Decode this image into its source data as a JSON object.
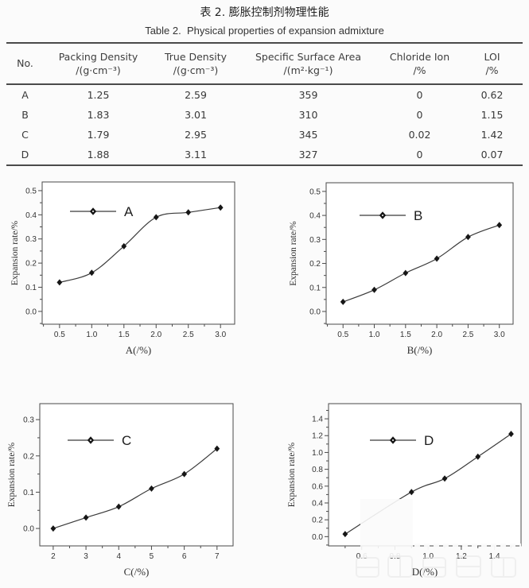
{
  "header": {
    "title_zh": "表 2. 膨胀控制剂物理性能",
    "title_en": "Table 2.  Physical properties of expansion admixture"
  },
  "table": {
    "columns": [
      {
        "name": "No.",
        "unit": ""
      },
      {
        "name": "Packing Density",
        "unit": "/(g·cm⁻³)"
      },
      {
        "name": "True Density",
        "unit": "/(g·cm⁻³)"
      },
      {
        "name": "Specific Surface Area",
        "unit": "/(m²·kg⁻¹)"
      },
      {
        "name": "Chloride Ion",
        "unit": "/%"
      },
      {
        "name": "LOI",
        "unit": "/%"
      }
    ],
    "rows": [
      [
        "A",
        "1.25",
        "2.59",
        "359",
        "0",
        "0.62"
      ],
      [
        "B",
        "1.83",
        "3.01",
        "310",
        "0",
        "1.15"
      ],
      [
        "C",
        "1.79",
        "2.95",
        "345",
        "0.02",
        "1.42"
      ],
      [
        "D",
        "1.88",
        "3.11",
        "327",
        "0",
        "0.07"
      ]
    ]
  },
  "chart_data": [
    {
      "type": "line",
      "series_label": "A",
      "marker": "diamond",
      "x": [
        0.5,
        1.0,
        1.5,
        2.0,
        2.5,
        3.0
      ],
      "y": [
        0.12,
        0.16,
        0.27,
        0.39,
        0.41,
        0.43
      ],
      "xlabel": "A(/%)",
      "ylabel": "Expansion rate/%",
      "xlim": [
        0.23,
        3.22
      ],
      "ylim": [
        -0.053,
        0.536
      ],
      "xticks": [
        0.5,
        1.0,
        1.5,
        2.0,
        2.5,
        3.0
      ],
      "yticks": [
        0.0,
        0.1,
        0.2,
        0.3,
        0.4,
        0.5
      ],
      "x_decimals": 1,
      "y_decimals": 1,
      "grid": false,
      "legend_position": "upper-left"
    },
    {
      "type": "line",
      "series_label": "B",
      "marker": "diamond",
      "x": [
        0.5,
        1.0,
        1.5,
        2.0,
        2.5,
        3.0
      ],
      "y": [
        0.04,
        0.09,
        0.16,
        0.22,
        0.31,
        0.36
      ],
      "xlabel": "B(/%)",
      "ylabel": "Expansion rate/%",
      "xlim": [
        0.23,
        3.22
      ],
      "ylim": [
        -0.053,
        0.536
      ],
      "xticks": [
        0.5,
        1.0,
        1.5,
        2.0,
        2.5,
        3.0
      ],
      "yticks": [
        0.0,
        0.1,
        0.2,
        0.3,
        0.4,
        0.5
      ],
      "x_decimals": 1,
      "y_decimals": 1,
      "grid": false,
      "legend_position": "upper-left"
    },
    {
      "type": "line",
      "series_label": "C",
      "marker": "diamond",
      "x": [
        2,
        3,
        4,
        5,
        6,
        7
      ],
      "y": [
        0.0,
        0.03,
        0.06,
        0.11,
        0.15,
        0.22
      ],
      "xlabel": "C(/%)",
      "ylabel": "Expansion rate/%",
      "xlim": [
        1.59,
        7.49
      ],
      "ylim": [
        -0.048,
        0.344
      ],
      "xticks": [
        2,
        3,
        4,
        5,
        6,
        7
      ],
      "yticks": [
        0.0,
        0.1,
        0.2,
        0.3
      ],
      "x_decimals": 0,
      "y_decimals": 1,
      "grid": false,
      "legend_position": "upper-left"
    },
    {
      "type": "line",
      "series_label": "D",
      "marker": "diamond",
      "x": [
        0.5,
        0.9,
        1.1,
        1.3,
        1.5
      ],
      "y": [
        0.03,
        0.53,
        0.69,
        0.95,
        1.22
      ],
      "xlabel": "D(/%)",
      "ylabel": "Expansion rate/%",
      "xlim": [
        0.4,
        1.56
      ],
      "ylim": [
        -0.11,
        1.58
      ],
      "xticks": [
        0.6,
        0.8,
        1.0,
        1.2,
        1.4
      ],
      "yticks": [
        0.0,
        0.2,
        0.4,
        0.6,
        0.8,
        1.0,
        1.2,
        1.4
      ],
      "x_decimals": 1,
      "y_decimals": 1,
      "grid": false,
      "legend_position": "upper-left"
    }
  ]
}
